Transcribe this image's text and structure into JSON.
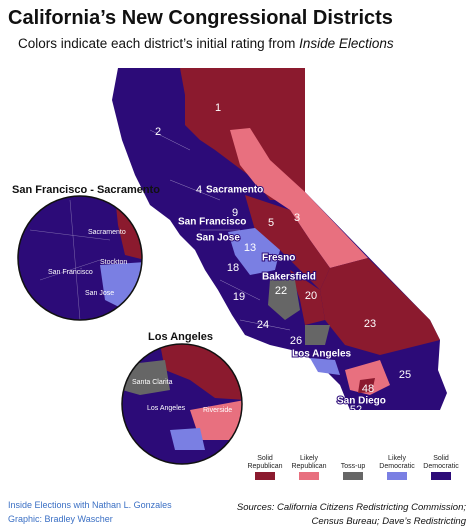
{
  "header": {
    "title": "California’s New Congressional Districts",
    "subtitle": "Colors indicate each district’s initial rating from ",
    "subtitle_source": "Inside Elections"
  },
  "map": {
    "districts": [
      "1",
      "2",
      "3",
      "4",
      "5",
      "9",
      "13",
      "18",
      "19",
      "20",
      "22",
      "23",
      "24",
      "25",
      "26",
      "48",
      "52"
    ],
    "cities": [
      "Sacramento",
      "San Francisco",
      "San Jose",
      "Fresno",
      "Bakersfield",
      "Los Angeles",
      "San Diego"
    ]
  },
  "insets": [
    {
      "title": "San Francisco - Sacramento",
      "labels": [
        "Sacramento",
        "San Francisco",
        "Stockton",
        "San Jose"
      ]
    },
    {
      "title": "Los Angeles",
      "labels": [
        "Santa Clarita",
        "Los Angeles",
        "Riverside"
      ]
    }
  ],
  "legend": [
    {
      "label": [
        "Solid",
        "Republican"
      ],
      "color": "#8b1a2e"
    },
    {
      "label": [
        "Likely",
        "Republican"
      ],
      "color": "#e8707f"
    },
    {
      "label": [
        "Toss-up"
      ],
      "color": "#666666"
    },
    {
      "label": [
        "Likely",
        "Democratic"
      ],
      "color": "#7a7fe3"
    },
    {
      "label": [
        "Solid",
        "Democratic"
      ],
      "color": "#2c0b78"
    }
  ],
  "credits": [
    "Inside Elections with Nathan L. Gonzales",
    "Graphic: Bradley Wascher"
  ],
  "sources": [
    "Sources: California Citizens Redistricting Commission;",
    "Census Bureau; Dave’s Redistricting"
  ]
}
